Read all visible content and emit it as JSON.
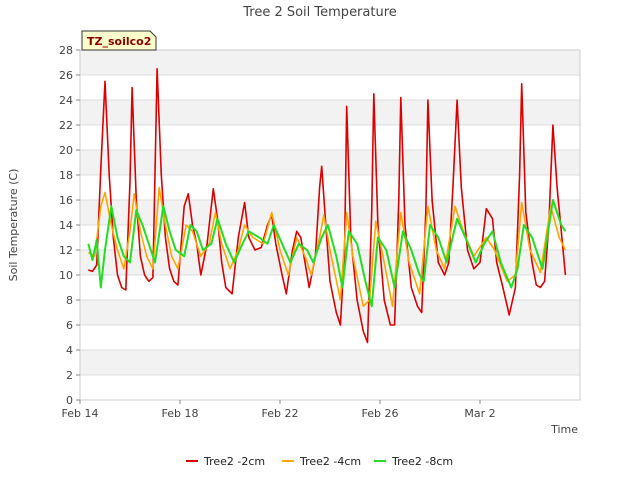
{
  "chart_data": {
    "type": "line",
    "title": "Tree 2 Soil Temperature",
    "xlabel": "Time",
    "ylabel": "Soil Temperature (C)",
    "badge": "TZ_soilco2",
    "ylim": [
      0,
      28
    ],
    "yticks": [
      0,
      2,
      4,
      6,
      8,
      10,
      12,
      14,
      16,
      18,
      20,
      22,
      24,
      26,
      28
    ],
    "xlim": [
      "2025-02-14",
      "2025-03-06"
    ],
    "xticks": [
      {
        "date": "2025-02-14",
        "label": "Feb 14"
      },
      {
        "date": "2025-02-18",
        "label": "Feb 18"
      },
      {
        "date": "2025-02-22",
        "label": "Feb 22"
      },
      {
        "date": "2025-02-26",
        "label": "Feb 26"
      },
      {
        "date": "2025-03-02",
        "label": "Mar 2"
      }
    ],
    "grid": true,
    "legend_position": "bottom",
    "series": [
      {
        "name": "Tree2 -2cm",
        "color": "#dd0000",
        "points": [
          [
            "2025-02-14T08:00",
            10.4
          ],
          [
            "2025-02-14T12:00",
            10.3
          ],
          [
            "2025-02-14T16:00",
            10.8
          ],
          [
            "2025-02-14T20:00",
            18.5
          ],
          [
            "2025-02-15T00:00",
            25.5
          ],
          [
            "2025-02-15T04:00",
            18.0
          ],
          [
            "2025-02-15T08:00",
            13.0
          ],
          [
            "2025-02-15T12:00",
            10.0
          ],
          [
            "2025-02-15T16:00",
            9.0
          ],
          [
            "2025-02-15T20:00",
            8.8
          ],
          [
            "2025-02-16T00:00",
            17.5
          ],
          [
            "2025-02-16T02:00",
            25.0
          ],
          [
            "2025-02-16T06:00",
            16.0
          ],
          [
            "2025-02-16T10:00",
            11.5
          ],
          [
            "2025-02-16T14:00",
            10.0
          ],
          [
            "2025-02-16T18:00",
            9.5
          ],
          [
            "2025-02-16T22:00",
            9.8
          ],
          [
            "2025-02-17T02:00",
            26.5
          ],
          [
            "2025-02-17T06:00",
            18.0
          ],
          [
            "2025-02-17T10:00",
            13.0
          ],
          [
            "2025-02-17T14:00",
            10.5
          ],
          [
            "2025-02-17T18:00",
            9.5
          ],
          [
            "2025-02-17T22:00",
            9.2
          ],
          [
            "2025-02-18T04:00",
            15.5
          ],
          [
            "2025-02-18T08:00",
            16.5
          ],
          [
            "2025-02-18T12:00",
            14.0
          ],
          [
            "2025-02-18T16:00",
            12.5
          ],
          [
            "2025-02-18T20:00",
            10.0
          ],
          [
            "2025-02-19T02:00",
            12.5
          ],
          [
            "2025-02-19T08:00",
            16.9
          ],
          [
            "2025-02-19T12:00",
            14.5
          ],
          [
            "2025-02-19T16:00",
            11.0
          ],
          [
            "2025-02-19T20:00",
            9.0
          ],
          [
            "2025-02-20T02:00",
            8.5
          ],
          [
            "2025-02-20T08:00",
            13.0
          ],
          [
            "2025-02-20T14:00",
            15.8
          ],
          [
            "2025-02-20T18:00",
            13.0
          ],
          [
            "2025-02-21T00:00",
            12.0
          ],
          [
            "2025-02-21T06:00",
            12.2
          ],
          [
            "2025-02-21T12:00",
            14.0
          ],
          [
            "2025-02-21T16:00",
            14.8
          ],
          [
            "2025-02-21T20:00",
            12.5
          ],
          [
            "2025-02-22T02:00",
            10.0
          ],
          [
            "2025-02-22T06:00",
            8.5
          ],
          [
            "2025-02-22T12:00",
            12.0
          ],
          [
            "2025-02-22T16:00",
            13.5
          ],
          [
            "2025-02-22T20:00",
            13.0
          ],
          [
            "2025-02-23T00:00",
            11.0
          ],
          [
            "2025-02-23T04:00",
            9.0
          ],
          [
            "2025-02-23T10:00",
            11.5
          ],
          [
            "2025-02-23T14:00",
            17.0
          ],
          [
            "2025-02-23T16:00",
            18.7
          ],
          [
            "2025-02-23T20:00",
            14.0
          ],
          [
            "2025-02-24T00:00",
            9.5
          ],
          [
            "2025-02-24T06:00",
            7.0
          ],
          [
            "2025-02-24T10:00",
            6.0
          ],
          [
            "2025-02-24T14:00",
            12.0
          ],
          [
            "2025-02-24T16:00",
            23.5
          ],
          [
            "2025-02-24T20:00",
            13.0
          ],
          [
            "2025-02-25T02:00",
            8.0
          ],
          [
            "2025-02-25T08:00",
            5.5
          ],
          [
            "2025-02-25T12:00",
            4.6
          ],
          [
            "2025-02-25T16:00",
            15.0
          ],
          [
            "2025-02-25T18:00",
            24.5
          ],
          [
            "2025-02-25T22:00",
            14.0
          ],
          [
            "2025-02-26T04:00",
            8.0
          ],
          [
            "2025-02-26T10:00",
            6.0
          ],
          [
            "2025-02-26T14:00",
            6.0
          ],
          [
            "2025-02-26T18:00",
            16.0
          ],
          [
            "2025-02-26T20:00",
            24.2
          ],
          [
            "2025-02-27T00:00",
            14.0
          ],
          [
            "2025-02-27T06:00",
            9.0
          ],
          [
            "2025-02-27T12:00",
            7.5
          ],
          [
            "2025-02-27T16:00",
            7.0
          ],
          [
            "2025-02-27T20:00",
            15.0
          ],
          [
            "2025-02-27T22:00",
            24.0
          ],
          [
            "2025-02-28T02:00",
            16.0
          ],
          [
            "2025-02-28T08:00",
            11.0
          ],
          [
            "2025-02-28T14:00",
            10.0
          ],
          [
            "2025-02-28T18:00",
            11.0
          ],
          [
            "2025-02-28T22:00",
            17.0
          ],
          [
            "2025-03-01T02:00",
            24.0
          ],
          [
            "2025-03-01T06:00",
            17.0
          ],
          [
            "2025-03-01T12:00",
            12.0
          ],
          [
            "2025-03-01T18:00",
            10.5
          ],
          [
            "2025-03-02T00:00",
            11.0
          ],
          [
            "2025-03-02T06:00",
            15.3
          ],
          [
            "2025-03-02T12:00",
            14.5
          ],
          [
            "2025-03-02T16:00",
            11.0
          ],
          [
            "2025-03-02T22:00",
            9.0
          ],
          [
            "2025-03-03T04:00",
            6.8
          ],
          [
            "2025-03-03T10:00",
            9.0
          ],
          [
            "2025-03-03T14:00",
            18.0
          ],
          [
            "2025-03-03T16:00",
            25.3
          ],
          [
            "2025-03-03T20:00",
            15.0
          ],
          [
            "2025-03-04T02:00",
            11.0
          ],
          [
            "2025-03-04T06:00",
            9.2
          ],
          [
            "2025-03-04T10:00",
            9.0
          ],
          [
            "2025-03-04T14:00",
            9.5
          ],
          [
            "2025-03-04T18:00",
            14.0
          ],
          [
            "2025-03-04T22:00",
            22.0
          ],
          [
            "2025-03-05T02:00",
            17.0
          ],
          [
            "2025-03-05T06:00",
            13.5
          ],
          [
            "2025-03-05T10:00",
            10.0
          ]
        ]
      },
      {
        "name": "Tree2 -4cm",
        "color": "#ffa500",
        "points": [
          [
            "2025-02-14T08:00",
            11.8
          ],
          [
            "2025-02-14T14:00",
            11.5
          ],
          [
            "2025-02-14T20:00",
            15.5
          ],
          [
            "2025-02-15T00:00",
            16.6
          ],
          [
            "2025-02-15T06:00",
            14.0
          ],
          [
            "2025-02-15T12:00",
            12.0
          ],
          [
            "2025-02-15T18:00",
            10.5
          ],
          [
            "2025-02-16T00:00",
            13.5
          ],
          [
            "2025-02-16T04:00",
            16.5
          ],
          [
            "2025-02-16T10:00",
            13.5
          ],
          [
            "2025-02-16T16:00",
            11.5
          ],
          [
            "2025-02-16T22:00",
            10.5
          ],
          [
            "2025-02-17T04:00",
            17.0
          ],
          [
            "2025-02-17T10:00",
            14.0
          ],
          [
            "2025-02-17T16:00",
            11.5
          ],
          [
            "2025-02-17T22:00",
            10.5
          ],
          [
            "2025-02-18T06:00",
            14.0
          ],
          [
            "2025-02-18T12:00",
            13.5
          ],
          [
            "2025-02-18T20:00",
            11.5
          ],
          [
            "2025-02-19T04:00",
            12.5
          ],
          [
            "2025-02-19T10:00",
            15.0
          ],
          [
            "2025-02-19T16:00",
            12.5
          ],
          [
            "2025-02-20T00:00",
            10.5
          ],
          [
            "2025-02-20T08:00",
            12.0
          ],
          [
            "2025-02-20T14:00",
            14.0
          ],
          [
            "2025-02-20T22:00",
            13.0
          ],
          [
            "2025-02-21T08:00",
            12.5
          ],
          [
            "2025-02-21T16:00",
            15.0
          ],
          [
            "2025-02-22T00:00",
            12.0
          ],
          [
            "2025-02-22T08:00",
            10.0
          ],
          [
            "2025-02-22T16:00",
            13.0
          ],
          [
            "2025-02-23T00:00",
            11.5
          ],
          [
            "2025-02-23T06:00",
            10.0
          ],
          [
            "2025-02-23T14:00",
            13.0
          ],
          [
            "2025-02-23T18:00",
            14.8
          ],
          [
            "2025-02-24T00:00",
            12.0
          ],
          [
            "2025-02-24T10:00",
            8.0
          ],
          [
            "2025-02-24T16:00",
            15.0
          ],
          [
            "2025-02-24T22:00",
            11.5
          ],
          [
            "2025-02-25T08:00",
            7.5
          ],
          [
            "2025-02-25T14:00",
            8.0
          ],
          [
            "2025-02-25T20:00",
            14.3
          ],
          [
            "2025-02-26T04:00",
            11.0
          ],
          [
            "2025-02-26T12:00",
            7.5
          ],
          [
            "2025-02-26T20:00",
            15.0
          ],
          [
            "2025-02-27T04:00",
            11.0
          ],
          [
            "2025-02-27T14:00",
            8.5
          ],
          [
            "2025-02-27T22:00",
            15.5
          ],
          [
            "2025-02-28T06:00",
            12.0
          ],
          [
            "2025-02-28T14:00",
            10.5
          ],
          [
            "2025-03-01T00:00",
            15.5
          ],
          [
            "2025-03-01T08:00",
            13.5
          ],
          [
            "2025-03-01T18:00",
            11.5
          ],
          [
            "2025-03-02T06:00",
            13.0
          ],
          [
            "2025-03-02T14:00",
            12.0
          ],
          [
            "2025-03-03T02:00",
            9.5
          ],
          [
            "2025-03-03T10:00",
            10.0
          ],
          [
            "2025-03-03T16:00",
            15.8
          ],
          [
            "2025-03-04T00:00",
            12.0
          ],
          [
            "2025-03-04T10:00",
            10.2
          ],
          [
            "2025-03-04T20:00",
            15.5
          ],
          [
            "2025-03-05T04:00",
            13.0
          ],
          [
            "2025-03-05T10:00",
            12.0
          ]
        ]
      },
      {
        "name": "Tree2 -8cm",
        "color": "#22dd22",
        "points": [
          [
            "2025-02-14T08:00",
            12.5
          ],
          [
            "2025-02-14T12:00",
            11.2
          ],
          [
            "2025-02-14T16:00",
            12.8
          ],
          [
            "2025-02-14T20:00",
            9.0
          ],
          [
            "2025-02-15T00:00",
            12.0
          ],
          [
            "2025-02-15T06:00",
            15.5
          ],
          [
            "2025-02-15T12:00",
            13.0
          ],
          [
            "2025-02-15T18:00",
            11.5
          ],
          [
            "2025-02-16T00:00",
            11.0
          ],
          [
            "2025-02-16T06:00",
            15.2
          ],
          [
            "2025-02-16T12:00",
            14.0
          ],
          [
            "2025-02-16T18:00",
            12.5
          ],
          [
            "2025-02-17T00:00",
            11.0
          ],
          [
            "2025-02-17T08:00",
            15.5
          ],
          [
            "2025-02-17T14:00",
            13.5
          ],
          [
            "2025-02-17T20:00",
            12.0
          ],
          [
            "2025-02-18T04:00",
            11.5
          ],
          [
            "2025-02-18T10:00",
            14.0
          ],
          [
            "2025-02-18T16:00",
            13.5
          ],
          [
            "2025-02-18T22:00",
            12.0
          ],
          [
            "2025-02-19T06:00",
            12.5
          ],
          [
            "2025-02-19T12:00",
            14.5
          ],
          [
            "2025-02-19T20:00",
            12.5
          ],
          [
            "2025-02-20T04:00",
            11.0
          ],
          [
            "2025-02-20T12:00",
            12.5
          ],
          [
            "2025-02-20T18:00",
            13.5
          ],
          [
            "2025-02-21T04:00",
            13.0
          ],
          [
            "2025-02-21T12:00",
            12.5
          ],
          [
            "2025-02-21T18:00",
            14.0
          ],
          [
            "2025-02-22T02:00",
            12.5
          ],
          [
            "2025-02-22T10:00",
            11.0
          ],
          [
            "2025-02-22T18:00",
            12.5
          ],
          [
            "2025-02-23T02:00",
            12.0
          ],
          [
            "2025-02-23T08:00",
            11.0
          ],
          [
            "2025-02-23T16:00",
            13.0
          ],
          [
            "2025-02-23T22:00",
            14.0
          ],
          [
            "2025-02-24T06:00",
            11.5
          ],
          [
            "2025-02-24T12:00",
            9.0
          ],
          [
            "2025-02-24T18:00",
            13.5
          ],
          [
            "2025-02-25T02:00",
            12.5
          ],
          [
            "2025-02-25T10:00",
            9.5
          ],
          [
            "2025-02-25T16:00",
            7.5
          ],
          [
            "2025-02-25T22:00",
            13.0
          ],
          [
            "2025-02-26T06:00",
            12.0
          ],
          [
            "2025-02-26T14:00",
            9.0
          ],
          [
            "2025-02-26T22:00",
            13.5
          ],
          [
            "2025-02-27T06:00",
            12.0
          ],
          [
            "2025-02-27T14:00",
            10.0
          ],
          [
            "2025-02-27T18:00",
            9.5
          ],
          [
            "2025-02-28T00:00",
            14.0
          ],
          [
            "2025-02-28T08:00",
            13.0
          ],
          [
            "2025-02-28T16:00",
            11.0
          ],
          [
            "2025-03-01T02:00",
            14.5
          ],
          [
            "2025-03-01T10:00",
            13.0
          ],
          [
            "2025-03-01T20:00",
            11.0
          ],
          [
            "2025-03-02T04:00",
            12.5
          ],
          [
            "2025-03-02T12:00",
            13.5
          ],
          [
            "2025-03-02T20:00",
            11.0
          ],
          [
            "2025-03-03T06:00",
            9.0
          ],
          [
            "2025-03-03T12:00",
            10.5
          ],
          [
            "2025-03-03T18:00",
            14.0
          ],
          [
            "2025-03-04T02:00",
            13.0
          ],
          [
            "2025-03-04T12:00",
            10.5
          ],
          [
            "2025-03-04T22:00",
            16.0
          ],
          [
            "2025-03-05T06:00",
            14.0
          ],
          [
            "2025-03-05T10:00",
            13.5
          ]
        ]
      }
    ]
  }
}
